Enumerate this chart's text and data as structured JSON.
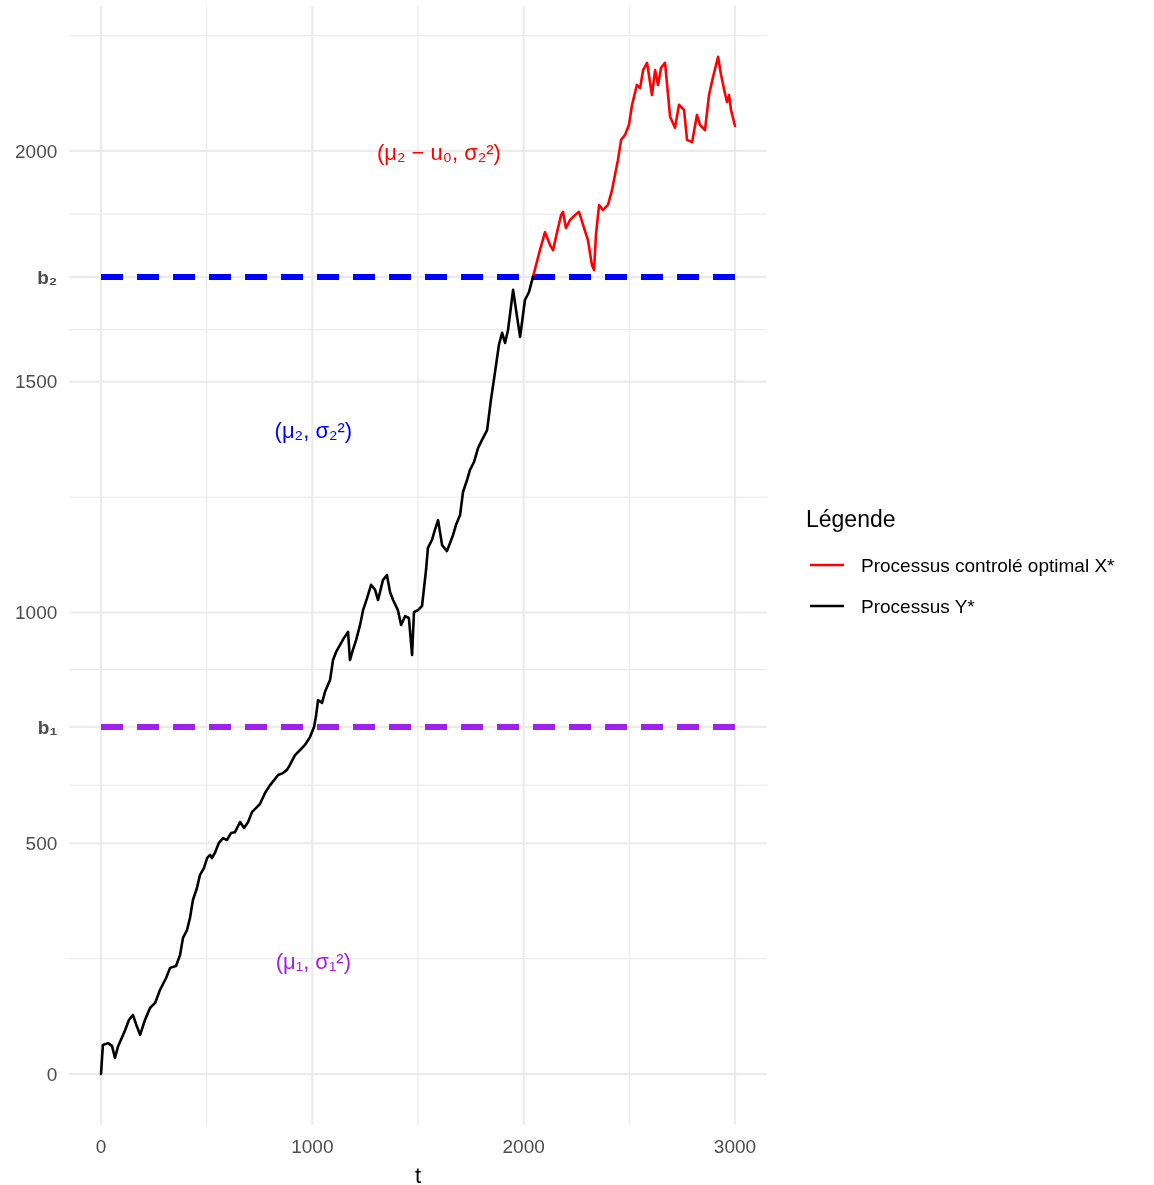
{
  "chart_data": {
    "type": "line",
    "xlabel": "t",
    "legend_title": "Légende",
    "legend": "right",
    "grid": true,
    "line_style": "solid",
    "marker": "none",
    "xlim": [
      -150,
      3150
    ],
    "xticks": [
      0,
      {
        "value": 500,
        "label": null
      },
      1000,
      {
        "value": 1500,
        "label": null
      },
      2000,
      {
        "value": 2500,
        "label": null
      },
      3000
    ],
    "ylim": [
      -110,
      2314
    ],
    "yticks": [
      0,
      {
        "value": 250,
        "label": null
      },
      500,
      {
        "value": 626,
        "label": null
      },
      {
        "value": 752,
        "label": "b₁"
      },
      {
        "value": 876,
        "label": null
      },
      1000,
      {
        "value": 1250,
        "label": null
      },
      1500,
      {
        "value": 1613,
        "label": null
      },
      {
        "value": 1727,
        "label": "b₂"
      },
      {
        "value": 1863,
        "label": null
      },
      2000,
      {
        "value": 2250,
        "label": null
      }
    ],
    "ref_lines": [
      {
        "axis": "y",
        "value": 752,
        "color": "#a020f0",
        "line_style": "dashed"
      },
      {
        "axis": "y",
        "value": 1727,
        "color": "#0000ff",
        "line_style": "dashed"
      }
    ],
    "annotations": [
      "(μ₁, σ₁²)",
      "(μ₂, σ₂²)",
      "(μ₂ − u₀, σ₂²)"
    ],
    "series": [
      {
        "name": "Processus controlé optimal X*",
        "color": "#ff0000",
        "x": [
          2044,
          2077,
          2101,
          2125,
          2139,
          2158,
          2177,
          2186,
          2200,
          2219,
          2243,
          2262,
          2281,
          2304,
          2323,
          2333,
          2342,
          2357,
          2375,
          2399,
          2418,
          2432,
          2446,
          2461,
          2480,
          2498,
          2513,
          2522,
          2536,
          2551,
          2565,
          2584,
          2607,
          2622,
          2636,
          2650,
          2669,
          2693,
          2716,
          2735,
          2759,
          2773,
          2797,
          2820,
          2835,
          2858,
          2877,
          2896,
          2920,
          2934,
          2949,
          2962,
          2972,
          2981,
          3000
        ],
        "values": [
          1727,
          1785,
          1824,
          1796,
          1785,
          1824,
          1861,
          1868,
          1833,
          1850,
          1861,
          1868,
          1840,
          1807,
          1753,
          1742,
          1818,
          1883,
          1872,
          1883,
          1915,
          1948,
          1980,
          2024,
          2035,
          2056,
          2100,
          2117,
          2143,
          2136,
          2175,
          2191,
          2121,
          2175,
          2143,
          2180,
          2191,
          2074,
          2050,
          2100,
          2089,
          2024,
          2019,
          2078,
          2056,
          2045,
          2121,
          2160,
          2204,
          2165,
          2132,
          2106,
          2121,
          2089,
          2054
        ]
      },
      {
        "name": "Processus Y*",
        "color": "#000000",
        "x": [
          0,
          9,
          33,
          52,
          66,
          80,
          114,
          132,
          151,
          166,
          185,
          208,
          232,
          256,
          279,
          308,
          327,
          355,
          374,
          388,
          407,
          421,
          435,
          454,
          468,
          487,
          502,
          516,
          525,
          539,
          558,
          577,
          596,
          615,
          634,
          658,
          677,
          696,
          715,
          733,
          752,
          776,
          800,
          823,
          838,
          861,
          880,
          894,
          918,
          942,
          965,
          989,
          1008,
          1017,
          1027,
          1046,
          1060,
          1084,
          1098,
          1112,
          1131,
          1150,
          1169,
          1178,
          1192,
          1207,
          1226,
          1240,
          1259,
          1278,
          1297,
          1311,
          1334,
          1353,
          1368,
          1382,
          1405,
          1420,
          1439,
          1457,
          1472,
          1481,
          1500,
          1519,
          1538,
          1547,
          1566,
          1580,
          1595,
          1614,
          1637,
          1666,
          1680,
          1699,
          1713,
          1732,
          1746,
          1765,
          1784,
          1803,
          1827,
          1845,
          1864,
          1883,
          1898,
          1912,
          1926,
          1950,
          1964,
          1983,
          1997,
          2006,
          2025,
          2044
        ],
        "values": [
          0,
          63,
          67,
          61,
          35,
          59,
          95,
          117,
          128,
          108,
          85,
          117,
          143,
          154,
          182,
          208,
          230,
          234,
          258,
          295,
          312,
          338,
          377,
          403,
          431,
          446,
          468,
          475,
          468,
          479,
          501,
          511,
          507,
          522,
          524,
          546,
          533,
          546,
          568,
          576,
          585,
          609,
          626,
          639,
          648,
          652,
          659,
          670,
          691,
          702,
          713,
          730,
          752,
          774,
          810,
          804,
          828,
          854,
          897,
          914,
          930,
          945,
          958,
          897,
          919,
          940,
          973,
          1005,
          1031,
          1060,
          1049,
          1027,
          1070,
          1081,
          1044,
          1027,
          1005,
          973,
          992,
          988,
          908,
          1001,
          1005,
          1014,
          1092,
          1140,
          1157,
          1179,
          1200,
          1146,
          1133,
          1168,
          1190,
          1211,
          1261,
          1287,
          1309,
          1326,
          1356,
          1374,
          1395,
          1460,
          1519,
          1580,
          1606,
          1584,
          1612,
          1699,
          1655,
          1597,
          1645,
          1677,
          1694,
          1727
        ]
      }
    ]
  }
}
